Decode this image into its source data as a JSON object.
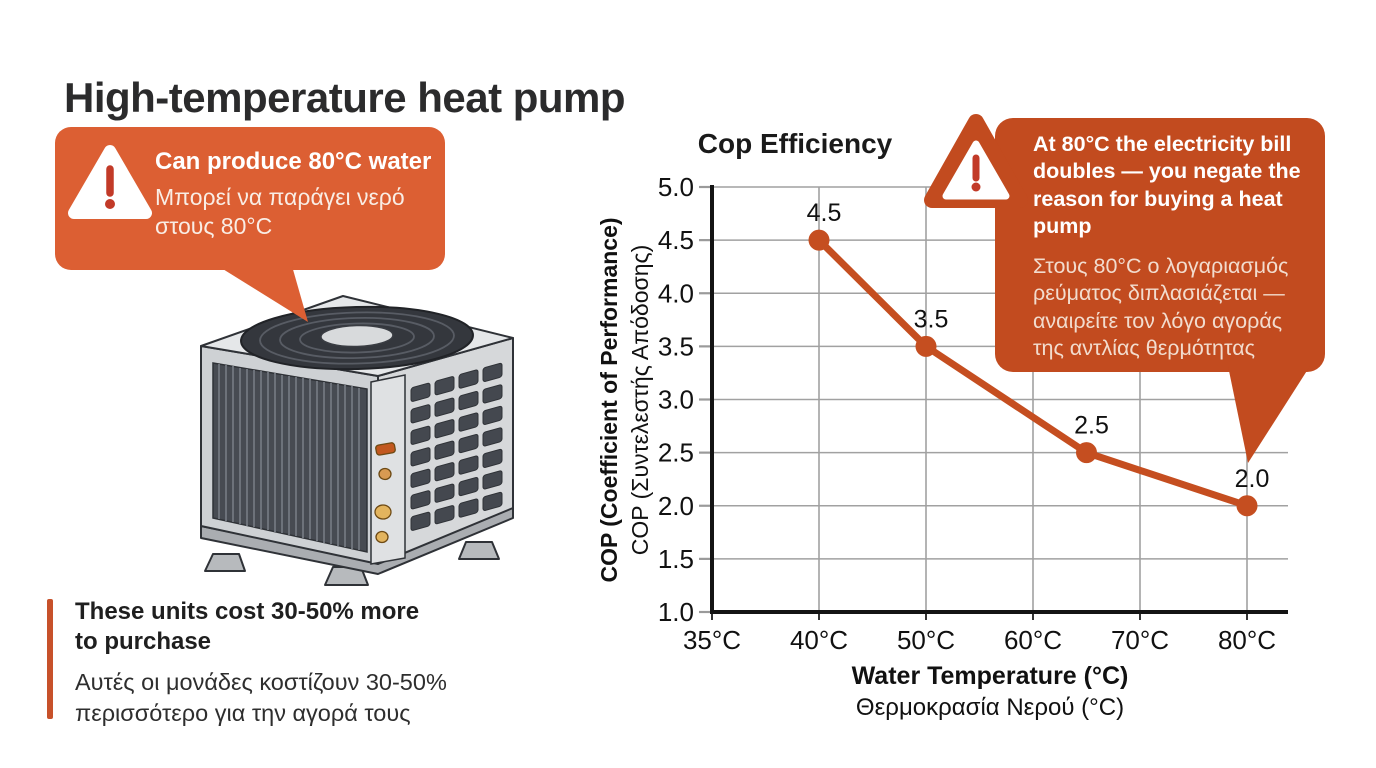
{
  "palette": {
    "left_callout_bg": "#DC5F33",
    "right_callout_bg": "#C24B1F",
    "line_color": "#C54E20",
    "accent_bar": "#C7512A",
    "warning_accent": "#C23A28"
  },
  "header": {
    "title": "High-temperature heat pump"
  },
  "callout_left": {
    "title": "Can produce 80°C water",
    "subtitle_el": "Μπορεί να παράγει νερό στους 80°C"
  },
  "callout_right": {
    "title": "At 80°C the electricity bill doubles — you negate the reason for buying a heat pump",
    "subtitle_el": "Στους 80°C ο λογαριασμός ρεύματος διπλασιάζεται — αναιρείτε τον λόγο αγοράς της αντλίας θερμότητας"
  },
  "note": {
    "title": "These units cost 30-50% more to purchase",
    "subtitle_el": "Αυτές οι μονάδες κοστίζουν 30-50% περισσότερο για την αγορά τους"
  },
  "chart_data": {
    "type": "line",
    "title": "Cop Efficiency",
    "xlabel": "Water Temperature (°C)",
    "xlabel_el": "Θερμοκρασία Νερού (°C)",
    "ylabel": "COP (Coefficient of Performance)",
    "ylabel_el": "COP (Συντελεστής Απόδοσης)",
    "categories": [
      "35°C",
      "40°C",
      "50°C",
      "60°C",
      "70°C",
      "80°C"
    ],
    "category_values": [
      35,
      40,
      50,
      60,
      70,
      80
    ],
    "points": [
      {
        "temp": 40,
        "cop": 4.5
      },
      {
        "temp": 50,
        "cop": 3.5
      },
      {
        "temp": 65,
        "cop": 2.5
      },
      {
        "temp": 80,
        "cop": 2.0
      }
    ],
    "ytick_values": [
      1.0,
      1.5,
      2.0,
      2.5,
      3.0,
      3.5,
      4.0,
      4.5,
      5.0
    ],
    "ylim": [
      1.0,
      5.0
    ],
    "grid": true,
    "legend_position": "none"
  }
}
